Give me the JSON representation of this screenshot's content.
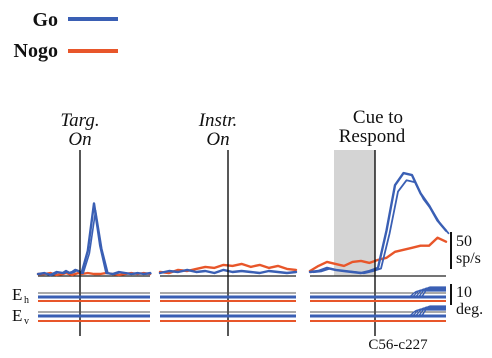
{
  "chart_data": {
    "type": "line",
    "legend": {
      "placement": "top-left",
      "entries": [
        {
          "name": "Go",
          "color": "#3a5fb4"
        },
        {
          "name": "Nogo",
          "color": "#e8562a"
        }
      ]
    },
    "panels": [
      {
        "event": "Targ. On",
        "event_line1": "Targ.",
        "event_line2": "On",
        "shaded": false,
        "time": [
          -10,
          -8,
          -6,
          -4,
          -2,
          -1,
          0,
          1,
          2,
          3,
          4,
          6,
          8,
          10,
          12,
          14,
          16,
          18,
          20,
          22,
          24,
          26
        ],
        "series": [
          {
            "name": "Go",
            "values": [
              2,
              3,
              1,
              4,
              3,
              5,
              3,
              4,
              6,
              5,
              3,
              25,
              72,
              30,
              3,
              2,
              4,
              3,
              2,
              3,
              2,
              3
            ]
          },
          {
            "name": "Nogo",
            "values": [
              2,
              2,
              3,
              1,
              2,
              3,
              2,
              1,
              2,
              3,
              2,
              3,
              2,
              2,
              3,
              2,
              1,
              2,
              3,
              2,
              3,
              2
            ]
          }
        ]
      },
      {
        "event": "Instr. On",
        "event_line1": "Instr.",
        "event_line2": "On",
        "shaded": false,
        "time": [
          -20,
          -16,
          -12,
          -8,
          -4,
          0,
          4,
          8,
          12,
          16,
          20,
          24,
          28,
          32,
          36,
          40
        ],
        "series": [
          {
            "name": "Go",
            "values": [
              3,
              5,
              4,
              6,
              4,
              5,
              3,
              6,
              4,
              5,
              4,
              3,
              5,
              4,
              3,
              4
            ]
          },
          {
            "name": "Nogo",
            "values": [
              4,
              3,
              6,
              5,
              7,
              9,
              8,
              11,
              10,
              12,
              9,
              11,
              8,
              10,
              7,
              6
            ]
          }
        ]
      },
      {
        "event": "Cue to Respond",
        "event_line1": "Cue to",
        "event_line2": "Respond",
        "shaded": true,
        "time": [
          -20,
          -16,
          -12,
          -8,
          -4,
          0,
          4,
          8,
          12,
          16,
          20,
          24,
          28,
          32,
          36,
          40,
          44
        ],
        "series": [
          {
            "name": "Go",
            "values": [
              4,
              5,
              8,
              6,
              5,
              4,
              3,
              5,
              8,
              45,
              90,
              102,
              100,
              82,
              70,
              55,
              45
            ]
          },
          {
            "name": "Nogo",
            "values": [
              5,
              10,
              14,
              12,
              10,
              14,
              15,
              13,
              16,
              18,
              24,
              26,
              28,
              30,
              30,
              38,
              34
            ]
          }
        ]
      }
    ],
    "eye_traces": {
      "labels": [
        "E",
        "h",
        "E",
        "v"
      ],
      "scale": {
        "line1": "10",
        "line2": "deg."
      }
    },
    "rate_scale": {
      "line1": "50",
      "line2": "sp/s"
    },
    "ylim": [
      0,
      115
    ],
    "cell_id": "C56-c227",
    "colors": {
      "go": "#3a5fb4",
      "nogo": "#e8562a",
      "shade": "#d4d4d4"
    }
  }
}
